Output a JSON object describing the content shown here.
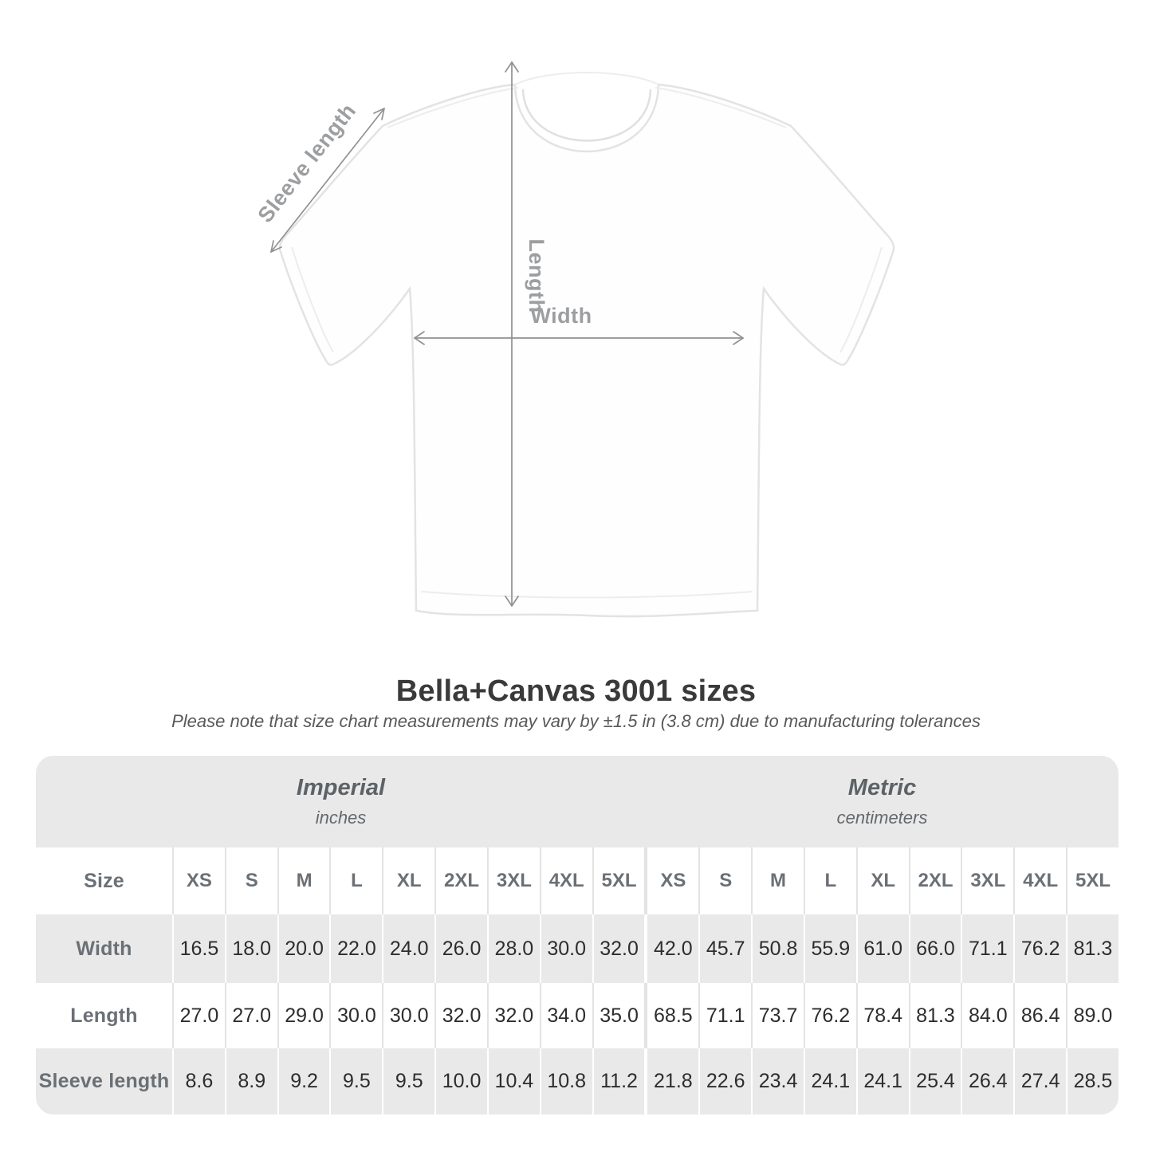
{
  "title": "Bella+Canvas 3001 sizes",
  "subtitle": "Please note that size chart measurements may vary by ±1.5 in (3.8 cm) due to manufacturing tolerances",
  "diagram": {
    "labels": {
      "sleeve": "Sleeve length",
      "length": "Length",
      "width": "Width"
    }
  },
  "table": {
    "size_label": "Size",
    "unit_groups": [
      {
        "name": "Imperial",
        "unit": "inches"
      },
      {
        "name": "Metric",
        "unit": "centimeters"
      }
    ],
    "sizes": [
      "XS",
      "S",
      "M",
      "L",
      "XL",
      "2XL",
      "3XL",
      "4XL",
      "5XL"
    ],
    "rows": [
      {
        "label": "Width",
        "imperial": [
          "16.5",
          "18.0",
          "20.0",
          "22.0",
          "24.0",
          "26.0",
          "28.0",
          "30.0",
          "32.0"
        ],
        "metric": [
          "42.0",
          "45.7",
          "50.8",
          "55.9",
          "61.0",
          "66.0",
          "71.1",
          "76.2",
          "81.3"
        ]
      },
      {
        "label": "Length",
        "imperial": [
          "27.0",
          "27.0",
          "29.0",
          "30.0",
          "30.0",
          "32.0",
          "32.0",
          "34.0",
          "35.0"
        ],
        "metric": [
          "68.5",
          "71.1",
          "73.7",
          "76.2",
          "78.4",
          "81.3",
          "84.0",
          "86.4",
          "89.0"
        ]
      },
      {
        "label": "Sleeve length",
        "imperial": [
          "8.6",
          "8.9",
          "9.2",
          "9.5",
          "9.5",
          "10.0",
          "10.4",
          "10.8",
          "11.2"
        ],
        "metric": [
          "21.8",
          "22.6",
          "23.4",
          "24.1",
          "24.1",
          "25.4",
          "26.4",
          "27.4",
          "28.5"
        ]
      }
    ]
  },
  "colors": {
    "band_gray": "#e9e9e9",
    "label_text": "#6a7075",
    "value_text": "#2d2d2d",
    "diagram_label_gray": "#9c9ea0",
    "arrow_gray": "#8f9193",
    "title_text": "#3a3a3a"
  },
  "chart_data": {
    "type": "table",
    "title": "Bella+Canvas 3001 sizes",
    "note": "Please note that size chart measurements may vary by ±1.5 in (3.8 cm) due to manufacturing tolerances",
    "unit_groups": [
      "Imperial (inches)",
      "Metric (centimeters)"
    ],
    "sizes": [
      "XS",
      "S",
      "M",
      "L",
      "XL",
      "2XL",
      "3XL",
      "4XL",
      "5XL"
    ],
    "measurements": [
      {
        "label": "Width",
        "imperial_in": [
          16.5,
          18.0,
          20.0,
          22.0,
          24.0,
          26.0,
          28.0,
          30.0,
          32.0
        ],
        "metric_cm": [
          42.0,
          45.7,
          50.8,
          55.9,
          61.0,
          66.0,
          71.1,
          76.2,
          81.3
        ]
      },
      {
        "label": "Length",
        "imperial_in": [
          27.0,
          27.0,
          29.0,
          30.0,
          30.0,
          32.0,
          32.0,
          34.0,
          35.0
        ],
        "metric_cm": [
          68.5,
          71.1,
          73.7,
          76.2,
          78.4,
          81.3,
          84.0,
          86.4,
          89.0
        ]
      },
      {
        "label": "Sleeve length",
        "imperial_in": [
          8.6,
          8.9,
          9.2,
          9.5,
          9.5,
          10.0,
          10.4,
          10.8,
          11.2
        ],
        "metric_cm": [
          21.8,
          22.6,
          23.4,
          24.1,
          24.1,
          25.4,
          26.4,
          27.4,
          28.5
        ]
      }
    ]
  }
}
